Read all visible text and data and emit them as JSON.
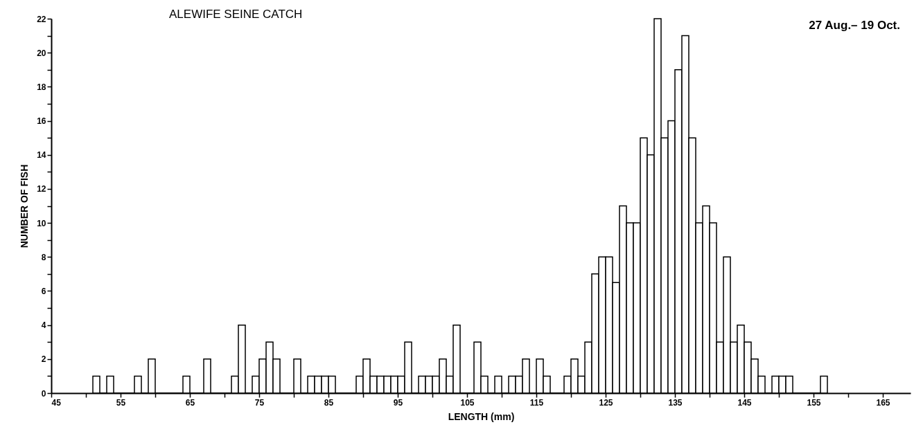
{
  "chart_data": {
    "type": "histogram",
    "title": "ALEWIFE SEINE CATCH",
    "annotations": [
      "27 Aug.– 19 Oct."
    ],
    "xlabel": "LENGTH (mm)",
    "ylabel": "NUMBER OF FISH",
    "bins": [
      51,
      52,
      53,
      54,
      55,
      56,
      57,
      58,
      59,
      60,
      61,
      62,
      63,
      64,
      65,
      66,
      67,
      68,
      69,
      70,
      71,
      72,
      73,
      74,
      75,
      76,
      77,
      78,
      79,
      80,
      81,
      82,
      83,
      84,
      85,
      86,
      87,
      88,
      89,
      90,
      91,
      92,
      93,
      94,
      95,
      96,
      97,
      98,
      99,
      100,
      101,
      102,
      103,
      104,
      105,
      106,
      107,
      108,
      109,
      110,
      111,
      112,
      113,
      114,
      115,
      116,
      117,
      118,
      119,
      120,
      121,
      122,
      123,
      124,
      125,
      126,
      127,
      128,
      129,
      130,
      131,
      132,
      133,
      134,
      135,
      136,
      137,
      138,
      139,
      140,
      141,
      142,
      143,
      144,
      145,
      146,
      147,
      148,
      149,
      150,
      151,
      152,
      153,
      154,
      155,
      156,
      157
    ],
    "values": [
      1,
      0,
      1,
      0,
      0,
      0,
      1,
      0,
      2,
      0,
      0,
      0,
      0,
      1,
      0,
      0,
      2,
      0,
      0,
      0,
      1,
      4,
      0,
      1,
      2,
      3,
      2,
      0,
      0,
      2,
      0,
      1,
      1,
      1,
      1,
      0,
      0,
      0,
      1,
      2,
      1,
      1,
      1,
      1,
      1,
      3,
      0,
      1,
      1,
      1,
      2,
      1,
      4,
      0,
      0,
      3,
      1,
      0,
      1,
      0,
      1,
      1,
      2,
      0,
      2,
      1,
      0,
      0,
      1,
      2,
      1,
      3,
      7,
      8,
      8,
      6.5,
      11,
      10,
      10,
      15,
      14,
      22,
      15,
      16,
      19,
      21,
      15,
      10,
      11,
      10,
      3,
      8,
      3,
      4,
      3,
      2,
      1,
      0,
      1,
      1,
      1,
      0,
      0,
      0,
      0,
      1
    ],
    "color": "#000000",
    "xlim": [
      45,
      169
    ],
    "xticks": [
      45,
      {
        "value": 50,
        "label": null
      },
      55,
      {
        "value": 60,
        "label": null
      },
      65,
      {
        "value": 70,
        "label": null
      },
      75,
      {
        "value": 80,
        "label": null
      },
      85,
      {
        "value": 90,
        "label": null
      },
      95,
      {
        "value": 100,
        "label": null
      },
      105,
      {
        "value": 110,
        "label": null
      },
      115,
      {
        "value": 120,
        "label": null
      },
      125,
      {
        "value": 130,
        "label": null
      },
      135,
      {
        "value": 140,
        "label": null
      },
      145,
      {
        "value": 150,
        "label": null
      },
      155,
      {
        "value": 160,
        "label": null
      },
      165
    ],
    "ylim": [
      0,
      22
    ],
    "yticks": [
      0,
      {
        "value": 1,
        "label": null
      },
      2,
      {
        "value": 3,
        "label": null
      },
      4,
      {
        "value": 5,
        "label": null
      },
      6,
      {
        "value": 7,
        "label": null
      },
      8,
      {
        "value": 9,
        "label": null
      },
      10,
      {
        "value": 11,
        "label": null
      },
      12,
      {
        "value": 13,
        "label": null
      },
      14,
      {
        "value": 15,
        "label": null
      },
      16,
      {
        "value": 17,
        "label": null
      },
      18,
      {
        "value": 19,
        "label": null
      },
      20,
      {
        "value": 21,
        "label": null
      },
      22
    ],
    "grid": false
  }
}
